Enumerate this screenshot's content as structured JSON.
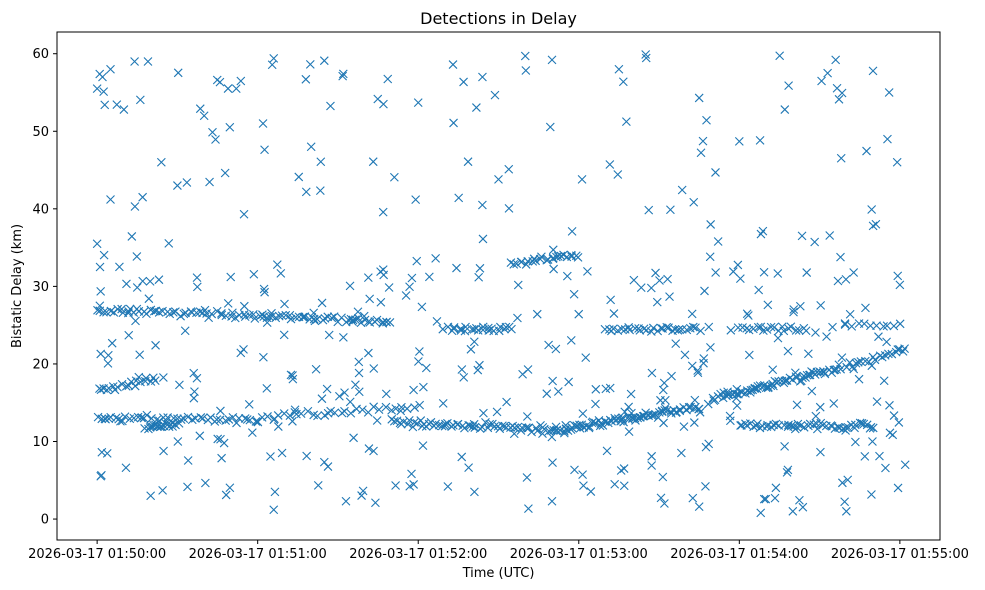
{
  "chart_data": {
    "type": "scatter",
    "title": "Detections in Delay",
    "xlabel": "Time (UTC)",
    "ylabel": "Bistatic Delay (km)",
    "x_unit": "seconds after 2026-03-17 01:50:00",
    "xlim": [
      -15,
      315
    ],
    "ylim": [
      -2.7,
      62.8
    ],
    "xticks": [
      0,
      60,
      120,
      180,
      240,
      300
    ],
    "xtick_labels": [
      "2026-03-17 01:50:00",
      "2026-03-17 01:51:00",
      "2026-03-17 01:52:00",
      "2026-03-17 01:53:00",
      "2026-03-17 01:54:00",
      "2026-03-17 01:55:00"
    ],
    "yticks": [
      0,
      10,
      20,
      30,
      40,
      50,
      60
    ],
    "ytick_labels": [
      "0",
      "10",
      "20",
      "30",
      "40",
      "50",
      "60"
    ],
    "marker": "x",
    "color": "#1f77b4",
    "grid": false,
    "tracks": [
      {
        "x_start": 0,
        "x_end": 60,
        "y_start": 13.0,
        "y_end": 12.8,
        "points": 45
      },
      {
        "x_start": 60,
        "x_end": 120,
        "y_start": 13.0,
        "y_end": 14.5,
        "points": 30
      },
      {
        "x_start": 110,
        "x_end": 175,
        "y_start": 12.5,
        "y_end": 11.5,
        "points": 70
      },
      {
        "x_start": 175,
        "x_end": 225,
        "y_start": 11.5,
        "y_end": 14.5,
        "points": 75
      },
      {
        "x_start": 230,
        "x_end": 272,
        "y_start": 15.5,
        "y_end": 19.0,
        "points": 60
      },
      {
        "x_start": 272,
        "x_end": 302,
        "y_start": 19.0,
        "y_end": 21.8,
        "points": 25
      },
      {
        "x_start": 0,
        "x_end": 22,
        "y_start": 16.5,
        "y_end": 18.0,
        "points": 20
      },
      {
        "x_start": 18,
        "x_end": 30,
        "y_start": 11.8,
        "y_end": 12.2,
        "points": 20
      },
      {
        "x_start": 240,
        "x_end": 290,
        "y_start": 12.0,
        "y_end": 12.0,
        "points": 50
      },
      {
        "x_start": 0,
        "x_end": 110,
        "y_start": 27.0,
        "y_end": 25.5,
        "points": 90
      },
      {
        "x_start": 130,
        "x_end": 155,
        "y_start": 24.5,
        "y_end": 24.5,
        "points": 25
      },
      {
        "x_start": 155,
        "x_end": 180,
        "y_start": 33.0,
        "y_end": 34.0,
        "points": 25
      },
      {
        "x_start": 190,
        "x_end": 225,
        "y_start": 24.5,
        "y_end": 24.5,
        "points": 30
      },
      {
        "x_start": 240,
        "x_end": 265,
        "y_start": 24.5,
        "y_end": 24.5,
        "points": 20
      },
      {
        "x_start": 280,
        "x_end": 300,
        "y_start": 25.0,
        "y_end": 25.0,
        "points": 10
      }
    ],
    "clutter": {
      "x_range": [
        0,
        300
      ],
      "y_range": [
        1,
        60
      ],
      "points": 420
    },
    "sample_points": [
      [
        0,
        55.5
      ],
      [
        1,
        27.5
      ],
      [
        0,
        35.5
      ],
      [
        2,
        57
      ],
      [
        5,
        58
      ],
      [
        5,
        41.2
      ],
      [
        10,
        52.8
      ],
      [
        14,
        59
      ],
      [
        17,
        41.5
      ],
      [
        19,
        59
      ],
      [
        24,
        46
      ],
      [
        30,
        43
      ],
      [
        40,
        52
      ],
      [
        52,
        55.5
      ],
      [
        62,
        51
      ],
      [
        66,
        59.4
      ],
      [
        78,
        56.7
      ],
      [
        80,
        48
      ],
      [
        92,
        57.4
      ],
      [
        107,
        53.5
      ],
      [
        120,
        53.7
      ],
      [
        133,
        58.6
      ],
      [
        144,
        57
      ],
      [
        150,
        43.8
      ],
      [
        160,
        59.7
      ],
      [
        170,
        59.2
      ],
      [
        195,
        58
      ],
      [
        205,
        59.9
      ],
      [
        225,
        54.3
      ],
      [
        240,
        48.7
      ],
      [
        257,
        52.8
      ],
      [
        273,
        57.5
      ],
      [
        276,
        59.2
      ],
      [
        299,
        46
      ],
      [
        296,
        55
      ],
      [
        20,
        3
      ],
      [
        66,
        1.2
      ],
      [
        93,
        2.3
      ],
      [
        104,
        2.1
      ],
      [
        141,
        3.5
      ],
      [
        170,
        2.3
      ],
      [
        197,
        4.3
      ],
      [
        212,
        2
      ],
      [
        225,
        1.6
      ],
      [
        248,
        0.8
      ],
      [
        260,
        1
      ],
      [
        280,
        1
      ],
      [
        290,
        37.8
      ],
      [
        300,
        30.2
      ],
      [
        302,
        7
      ]
    ]
  }
}
